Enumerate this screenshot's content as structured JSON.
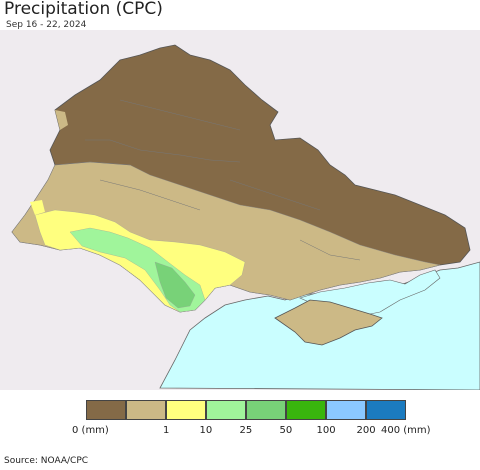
{
  "title": "Precipitation (CPC)",
  "subtitle": "Sep 16 - 22, 2024",
  "source": "Source: NOAA/CPC",
  "legend": {
    "colors": [
      "#846a47",
      "#ccb986",
      "#ffff7f",
      "#a0f59b",
      "#78d278",
      "#39b50d",
      "#8bc9ff",
      "#1b7bc0"
    ],
    "labels": [
      "0 (mm)",
      "1",
      "10",
      "25",
      "50",
      "100",
      "200",
      "400 (mm)"
    ]
  },
  "map_colors": {
    "background_land": "#efebef",
    "sea": "#cafeff",
    "bins": [
      "#846a47",
      "#ccb986",
      "#ffff7f",
      "#a0f59b",
      "#78d278"
    ]
  }
}
